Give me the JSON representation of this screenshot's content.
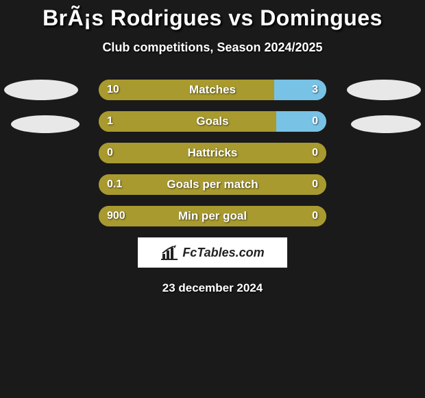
{
  "title": "BrÃ¡s Rodrigues vs Domingues",
  "subtitle": "Club competitions, Season 2024/2025",
  "colors": {
    "bg": "#1a1a1a",
    "player1_bar": "#a89a2f",
    "player2_bar": "#78c2e6",
    "oval": "#e8e8e8"
  },
  "stats": [
    {
      "label": "Matches",
      "left_val": "10",
      "right_val": "3",
      "left_pct": 77,
      "right_pct": 23
    },
    {
      "label": "Goals",
      "left_val": "1",
      "right_val": "0",
      "left_pct": 78,
      "right_pct": 22
    },
    {
      "label": "Hattricks",
      "left_val": "0",
      "right_val": "0",
      "left_pct": 100,
      "right_pct": 0
    },
    {
      "label": "Goals per match",
      "left_val": "0.1",
      "right_val": "0",
      "left_pct": 100,
      "right_pct": 0
    },
    {
      "label": "Min per goal",
      "left_val": "900",
      "right_val": "0",
      "left_pct": 100,
      "right_pct": 0
    }
  ],
  "logo_text": "FcTables.com",
  "date": "23 december 2024"
}
